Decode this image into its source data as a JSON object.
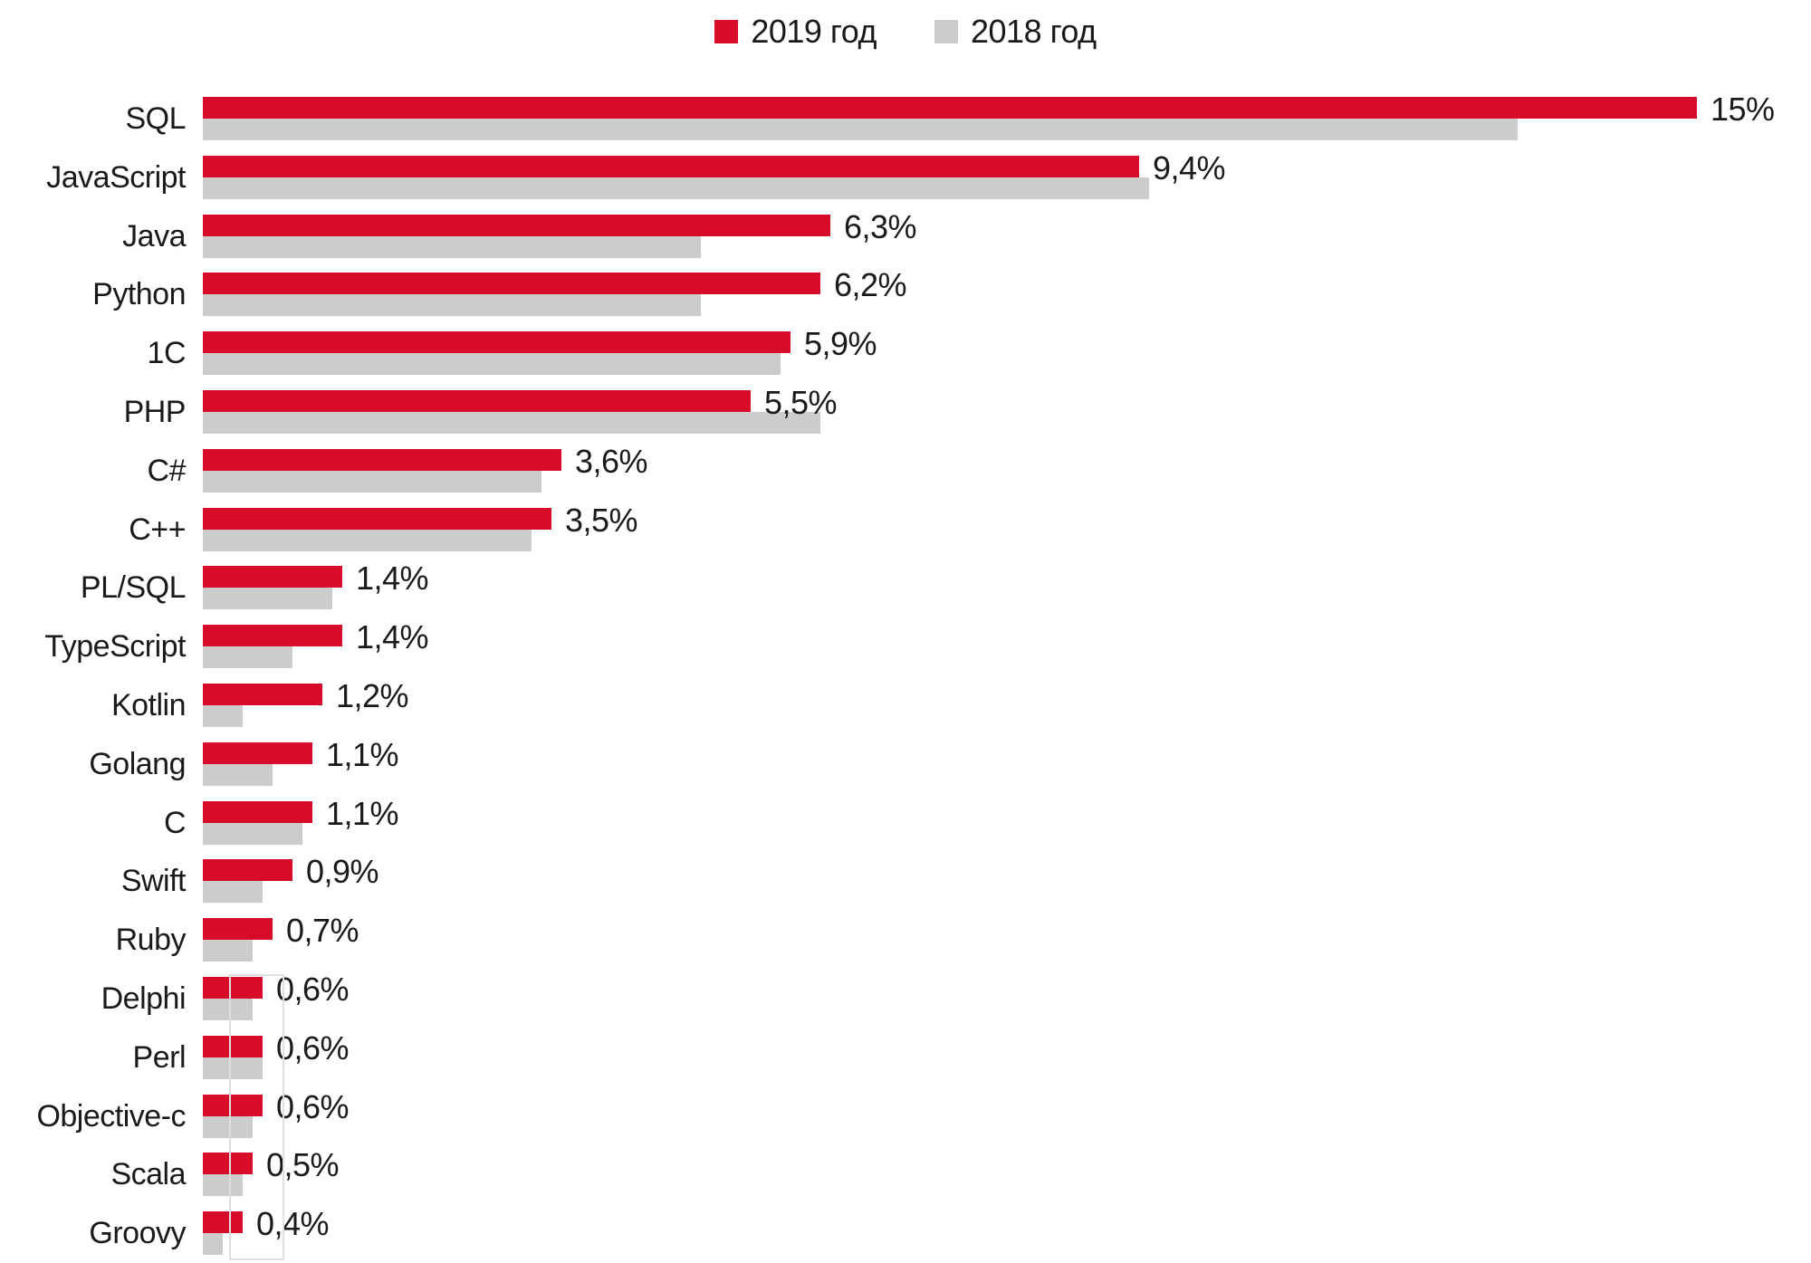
{
  "legend": {
    "items": [
      {
        "label": "2019 год",
        "color": "#d70b2a"
      },
      {
        "label": "2018 год",
        "color": "#cccccc"
      }
    ]
  },
  "chart_data": {
    "type": "bar",
    "orientation": "horizontal",
    "title": "",
    "xlabel": "",
    "ylabel": "",
    "axes_visible": false,
    "gridlines": false,
    "legend_position": "top-center",
    "value_label_format": "comma-decimal percent, shown for 2019 series only",
    "xlim": [
      0,
      16.2
    ],
    "categories": [
      "SQL",
      "JavaScript",
      "Java",
      "Python",
      "1C",
      "PHP",
      "C#",
      "C++",
      "PL/SQL",
      "TypeScript",
      "Kotlin",
      "Golang",
      "C",
      "Swift",
      "Ruby",
      "Delphi",
      "Perl",
      "Objective-c",
      "Scala",
      "Groovy"
    ],
    "series": [
      {
        "name": "2019 год",
        "color": "#d70b2a",
        "values": [
          15,
          9.4,
          6.3,
          6.2,
          5.9,
          5.5,
          3.6,
          3.5,
          1.4,
          1.4,
          1.2,
          1.1,
          1.1,
          0.9,
          0.7,
          0.6,
          0.6,
          0.6,
          0.5,
          0.4
        ],
        "data_labels": [
          "15%",
          "9,4%",
          "6,3%",
          "6,2%",
          "5,9%",
          "5,5%",
          "3,6%",
          "3,5%",
          "1,4%",
          "1,4%",
          "1,2%",
          "1,1%",
          "1,1%",
          "0,9%",
          "0,7%",
          "0,6%",
          "0,6%",
          "0,6%",
          "0,5%",
          "0,4%"
        ]
      },
      {
        "name": "2018 год",
        "color": "#cccccc",
        "values": [
          13.2,
          9.5,
          5.0,
          5.0,
          5.8,
          6.2,
          3.4,
          3.3,
          1.3,
          0.9,
          0.4,
          0.7,
          1.0,
          0.6,
          0.5,
          0.5,
          0.6,
          0.5,
          0.4,
          0.2
        ],
        "values_estimated_from_bar_lengths": true,
        "data_labels": []
      }
    ]
  }
}
